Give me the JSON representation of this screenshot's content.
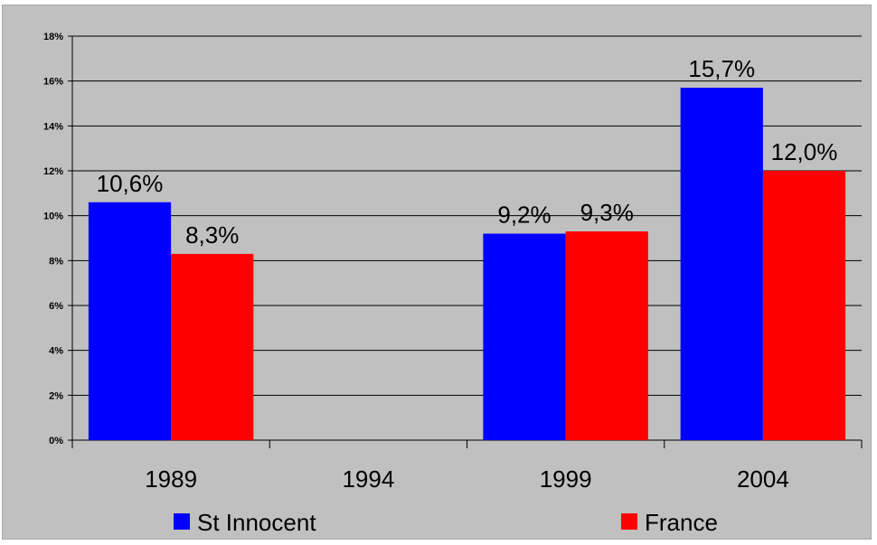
{
  "chart_data": {
    "type": "bar",
    "categories": [
      "1989",
      "1994",
      "1999",
      "2004"
    ],
    "series": [
      {
        "name": "St Innocent",
        "values": [
          10.6,
          null,
          9.2,
          15.7
        ],
        "labels": [
          "10,6%",
          "",
          "9,2%",
          "15,7%"
        ],
        "color": "#0000ff"
      },
      {
        "name": "France",
        "values": [
          8.3,
          null,
          9.3,
          12.0
        ],
        "labels": [
          "8,3%",
          "",
          "9,3%",
          "12,0%"
        ],
        "color": "#ff0000"
      }
    ],
    "yticks": [
      "0%",
      "2%",
      "4%",
      "6%",
      "8%",
      "10%",
      "12%",
      "14%",
      "16%",
      "18%"
    ],
    "ylim": [
      0,
      18
    ],
    "grid": true,
    "legend": "bottom",
    "background": "#c0c0c0"
  }
}
